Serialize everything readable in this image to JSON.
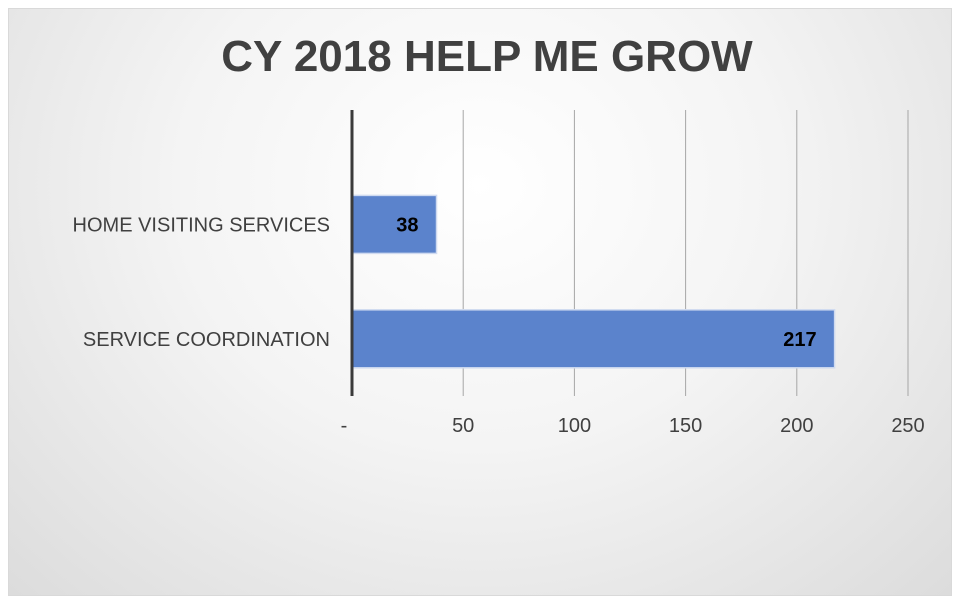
{
  "chart_data": {
    "type": "bar",
    "orientation": "horizontal",
    "title": "CY 2018 HELP ME GROW",
    "categories": [
      "HOME VISITING SERVICES",
      "SERVICE COORDINATION"
    ],
    "values": [
      38,
      217
    ],
    "data_labels": [
      "38",
      "217"
    ],
    "xlim": [
      0,
      250
    ],
    "x_ticks": [
      0,
      50,
      100,
      150,
      200,
      250
    ],
    "x_tick_labels": [
      "-",
      "50",
      "100",
      "150",
      "200",
      "250"
    ],
    "grid": "vertical",
    "legend": "none",
    "colors": {
      "bar": "#5b83cc",
      "bar_edge": "#cfdaf0",
      "grid": "#a6a6a6",
      "axis": "#3a3a3a",
      "text": "#404040"
    }
  }
}
